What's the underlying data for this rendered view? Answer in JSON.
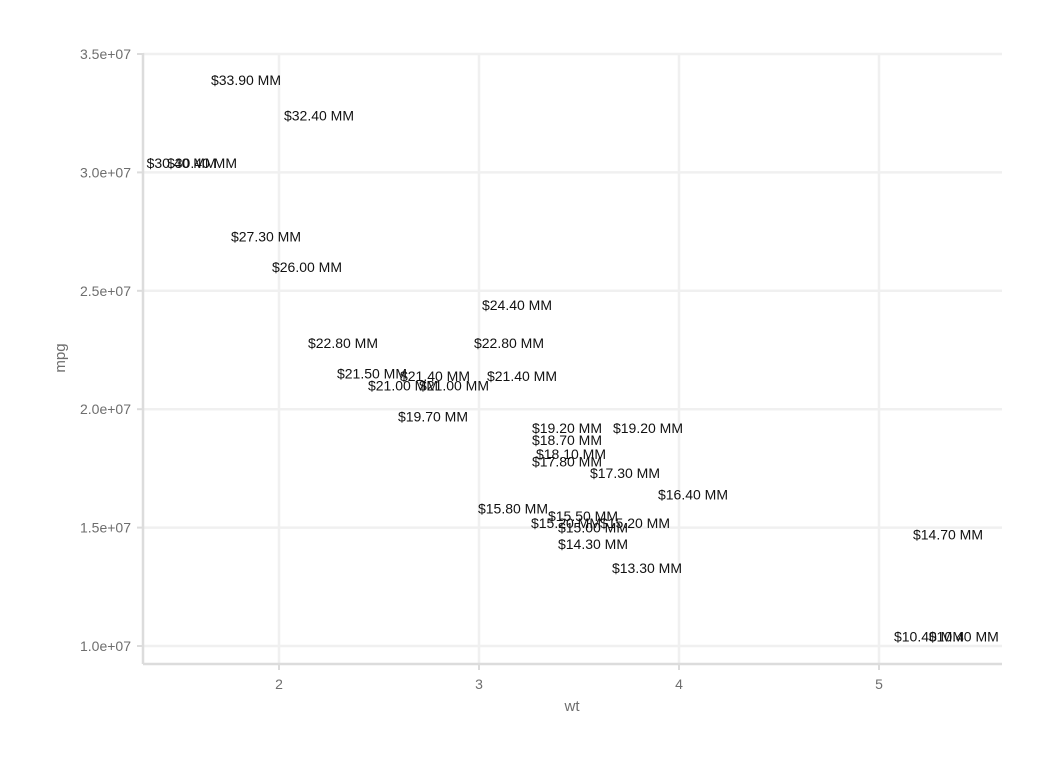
{
  "chart_data": {
    "type": "scatter",
    "xlabel": "wt",
    "ylabel": "mpg",
    "xlim": [
      1.32,
      5.61
    ],
    "ylim": [
      9400000,
      35000000
    ],
    "x_ticks": [
      2,
      3,
      4,
      5
    ],
    "x_tick_labels": [
      "2",
      "3",
      "4",
      "5"
    ],
    "y_ticks": [
      10000000,
      15000000,
      20000000,
      25000000,
      30000000,
      35000000
    ],
    "y_tick_labels": [
      "1.0e+07",
      "1.5e+07",
      "2.0e+07",
      "2.5e+07",
      "3.0e+07",
      "3.5e+07"
    ],
    "grid": true,
    "points": [
      {
        "x": 2.62,
        "y": 21000000,
        "label": "$21.00 MM"
      },
      {
        "x": 2.875,
        "y": 21000000,
        "label": "$21.00 MM"
      },
      {
        "x": 2.32,
        "y": 22800000,
        "label": "$22.80 MM"
      },
      {
        "x": 3.215,
        "y": 21400000,
        "label": "$21.40 MM"
      },
      {
        "x": 3.44,
        "y": 18700000,
        "label": "$18.70 MM"
      },
      {
        "x": 3.46,
        "y": 18100000,
        "label": "$18.10 MM"
      },
      {
        "x": 3.57,
        "y": 14300000,
        "label": "$14.30 MM"
      },
      {
        "x": 3.19,
        "y": 24400000,
        "label": "$24.40 MM"
      },
      {
        "x": 3.15,
        "y": 22800000,
        "label": "$22.80 MM"
      },
      {
        "x": 3.44,
        "y": 19200000,
        "label": "$19.20 MM"
      },
      {
        "x": 3.44,
        "y": 17800000,
        "label": "$17.80 MM"
      },
      {
        "x": 4.07,
        "y": 16400000,
        "label": "$16.40 MM"
      },
      {
        "x": 3.73,
        "y": 17300000,
        "label": "$17.30 MM"
      },
      {
        "x": 3.78,
        "y": 15200000,
        "label": "$15.20 MM"
      },
      {
        "x": 5.25,
        "y": 10400000,
        "label": "$10.40 MM"
      },
      {
        "x": 5.424,
        "y": 10400000,
        "label": "$10.40 MM"
      },
      {
        "x": 5.345,
        "y": 14700000,
        "label": "$14.70 MM"
      },
      {
        "x": 2.2,
        "y": 32400000,
        "label": "$32.40 MM"
      },
      {
        "x": 1.615,
        "y": 30400000,
        "label": "$30.40 MM"
      },
      {
        "x": 1.835,
        "y": 33900000,
        "label": "$33.90 MM"
      },
      {
        "x": 2.465,
        "y": 21500000,
        "label": "$21.50 MM"
      },
      {
        "x": 3.52,
        "y": 15500000,
        "label": "$15.50 MM"
      },
      {
        "x": 3.435,
        "y": 15200000,
        "label": "$15.20 MM"
      },
      {
        "x": 3.84,
        "y": 13300000,
        "label": "$13.30 MM"
      },
      {
        "x": 3.845,
        "y": 19200000,
        "label": "$19.20 MM"
      },
      {
        "x": 1.935,
        "y": 27300000,
        "label": "$27.30 MM"
      },
      {
        "x": 2.14,
        "y": 26000000,
        "label": "$26.00 MM"
      },
      {
        "x": 1.513,
        "y": 30400000,
        "label": "$30.40 MM"
      },
      {
        "x": 3.17,
        "y": 15800000,
        "label": "$15.80 MM"
      },
      {
        "x": 2.77,
        "y": 19700000,
        "label": "$19.70 MM"
      },
      {
        "x": 3.57,
        "y": 15000000,
        "label": "$15.00 MM"
      },
      {
        "x": 2.78,
        "y": 21400000,
        "label": "$21.40 MM"
      }
    ]
  }
}
